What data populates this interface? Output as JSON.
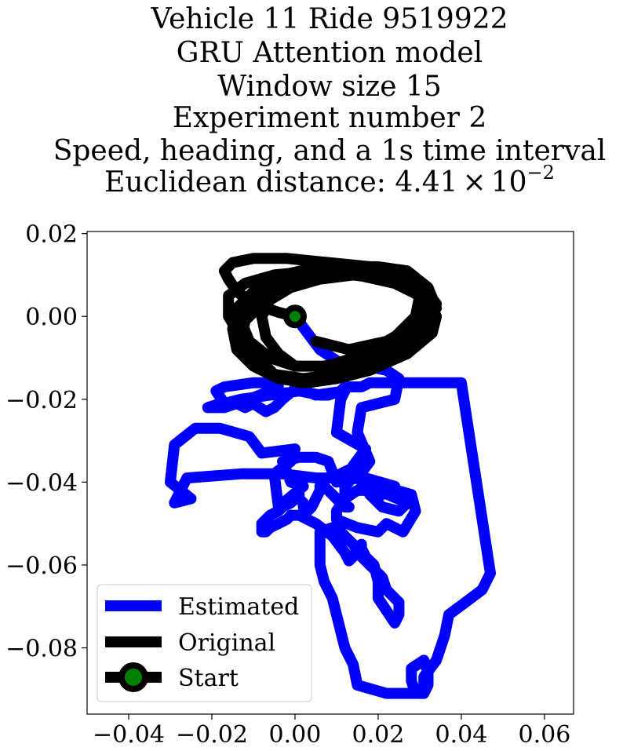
{
  "chart_data": {
    "type": "line",
    "title_lines": [
      "Vehicle 11 Ride 9519922",
      "GRU Attention model",
      "Window size 15",
      "Experiment number 2",
      "Speed, heading, and a 1s time interval"
    ],
    "title_distance": {
      "prefix": "Euclidean distance: ",
      "mantissa": "4.41",
      "times": "×",
      "base": "10",
      "exponent": "−2"
    },
    "xlabel": "",
    "ylabel": "",
    "xlim": [
      -0.05,
      0.067
    ],
    "ylim": [
      -0.096,
      0.0205
    ],
    "x_ticks": [
      -0.04,
      -0.02,
      0.0,
      0.02,
      0.04,
      0.06
    ],
    "x_tick_labels": [
      "−0.04",
      "−0.02",
      "0.00",
      "0.02",
      "0.04",
      "0.06"
    ],
    "y_ticks": [
      0.02,
      0.0,
      -0.02,
      -0.04,
      -0.06,
      -0.08
    ],
    "y_tick_labels": [
      "0.02",
      "0.00",
      "−0.02",
      "−0.04",
      "−0.06",
      "−0.08"
    ],
    "grid": false,
    "legend_position": "lower-left",
    "legend": [
      "Estimated",
      "Original",
      "Start"
    ],
    "colors": {
      "estimated": "#0000ff",
      "original": "#000000",
      "start_marker": "#008000"
    },
    "series": [
      {
        "name": "Estimated",
        "x": [
          0.0,
          0.006,
          0.012,
          0.017,
          0.022,
          0.025,
          0.024,
          0.016,
          0.015,
          0.018,
          0.015,
          0.01,
          0.008,
          0.005,
          0.001,
          -0.003,
          -0.001,
          0.002,
          -0.004,
          -0.005,
          -0.001,
          0.0,
          -0.008,
          -0.011,
          -0.018,
          -0.024,
          -0.029,
          -0.03,
          -0.025,
          -0.029,
          -0.026,
          -0.013,
          -0.003,
          0.005,
          0.009,
          0.013,
          0.017,
          0.024,
          0.021,
          0.018,
          0.021,
          0.025,
          0.027,
          0.02,
          0.015,
          0.012,
          0.01,
          0.01,
          0.015,
          0.02,
          0.022,
          0.026,
          0.029,
          0.028,
          0.021,
          0.016,
          0.014,
          0.017,
          0.01,
          0.011,
          0.012,
          0.005,
          0.0,
          0.003,
          -0.003,
          -0.005,
          -0.007,
          -0.01,
          -0.012,
          -0.014,
          -0.018,
          -0.021,
          -0.017,
          -0.011,
          -0.006,
          -0.004,
          -0.005,
          -0.01,
          -0.017,
          -0.019,
          -0.017,
          -0.013,
          -0.006,
          0.001,
          0.006,
          0.008,
          0.011,
          0.012,
          0.016,
          0.018,
          0.02,
          0.022,
          0.03,
          0.04,
          0.047,
          0.045,
          0.041,
          0.037,
          0.036,
          0.034,
          0.031,
          0.031,
          0.029,
          0.028,
          0.028,
          0.031,
          0.032,
          0.032,
          0.031,
          0.028,
          0.022,
          0.015,
          0.014,
          0.012,
          0.011,
          0.01,
          0.009,
          0.007,
          0.006,
          0.006,
          0.006,
          0.009,
          0.011,
          0.014,
          0.016,
          0.018,
          0.019,
          0.021,
          0.022,
          0.025,
          0.025,
          0.024,
          0.022,
          0.02,
          0.02,
          0.019,
          0.017,
          0.016,
          0.016,
          0.015,
          0.014,
          0.013,
          0.013,
          0.012,
          0.009,
          0.005,
          0.001,
          -0.001,
          -0.002,
          -0.004,
          -0.006,
          -0.007,
          -0.008,
          -0.008,
          -0.006,
          -0.004,
          -0.003,
          -0.001,
          0.0,
          0.001,
          0.001,
          0.002,
          0.002,
          0.003,
          0.004,
          0.005,
          0.006,
          0.006,
          0.007,
          0.008,
          0.009,
          0.01,
          0.011,
          0.013,
          0.012,
          0.011,
          0.012,
          0.012,
          0.013,
          0.013
        ],
        "y": [
          0.0,
          -0.008,
          -0.012,
          -0.012,
          -0.013,
          -0.015,
          -0.02,
          -0.022,
          -0.028,
          -0.035,
          -0.039,
          -0.04,
          -0.035,
          -0.034,
          -0.034,
          -0.035,
          -0.04,
          -0.041,
          -0.046,
          -0.038,
          -0.035,
          -0.032,
          -0.033,
          -0.029,
          -0.027,
          -0.027,
          -0.031,
          -0.04,
          -0.044,
          -0.045,
          -0.039,
          -0.038,
          -0.038,
          -0.039,
          -0.039,
          -0.037,
          -0.039,
          -0.041,
          -0.043,
          -0.043,
          -0.046,
          -0.047,
          -0.045,
          -0.042,
          -0.042,
          -0.044,
          -0.047,
          -0.049,
          -0.051,
          -0.052,
          -0.05,
          -0.052,
          -0.047,
          -0.043,
          -0.041,
          -0.04,
          -0.036,
          -0.032,
          -0.028,
          -0.02,
          -0.018,
          -0.019,
          -0.017,
          -0.015,
          -0.02,
          -0.022,
          -0.023,
          -0.021,
          -0.022,
          -0.021,
          -0.021,
          -0.022,
          -0.022,
          -0.02,
          -0.018,
          -0.017,
          -0.016,
          -0.016,
          -0.017,
          -0.018,
          -0.021,
          -0.02,
          -0.019,
          -0.018,
          -0.019,
          -0.019,
          -0.018,
          -0.017,
          -0.017,
          -0.016,
          -0.016,
          -0.016,
          -0.016,
          -0.016,
          -0.062,
          -0.066,
          -0.069,
          -0.072,
          -0.077,
          -0.083,
          -0.087,
          -0.091,
          -0.091,
          -0.088,
          -0.085,
          -0.083,
          -0.086,
          -0.089,
          -0.091,
          -0.091,
          -0.091,
          -0.089,
          -0.084,
          -0.08,
          -0.076,
          -0.072,
          -0.068,
          -0.064,
          -0.06,
          -0.056,
          -0.052,
          -0.051,
          -0.052,
          -0.055,
          -0.058,
          -0.06,
          -0.061,
          -0.063,
          -0.066,
          -0.069,
          -0.072,
          -0.074,
          -0.071,
          -0.068,
          -0.064,
          -0.06,
          -0.058,
          -0.056,
          -0.055,
          -0.056,
          -0.058,
          -0.059,
          -0.059,
          -0.057,
          -0.053,
          -0.05,
          -0.048,
          -0.048,
          -0.049,
          -0.05,
          -0.051,
          -0.052,
          -0.052,
          -0.05,
          -0.048,
          -0.047,
          -0.046,
          -0.045,
          -0.044,
          -0.043,
          -0.044,
          -0.045,
          -0.046,
          -0.047,
          -0.046,
          -0.044,
          -0.042,
          -0.041,
          -0.041,
          -0.042,
          -0.043,
          -0.044,
          -0.045,
          -0.046,
          -0.046,
          -0.045,
          -0.043,
          -0.041,
          -0.04,
          -0.039
        ]
      },
      {
        "name": "Original",
        "x": [
          0.0,
          -0.004,
          -0.01,
          -0.014,
          -0.016,
          -0.017,
          -0.015,
          -0.01,
          -0.002,
          0.008,
          0.018,
          0.026,
          0.031,
          0.034,
          0.033,
          0.027,
          0.018,
          0.01,
          0.003,
          -0.004,
          -0.01,
          -0.014,
          -0.015,
          -0.014,
          -0.01,
          -0.003,
          0.006,
          0.016,
          0.025,
          0.031,
          0.034,
          0.032,
          0.026,
          0.018,
          0.01,
          0.002,
          -0.005,
          -0.011,
          -0.013,
          -0.012,
          -0.007,
          0.0,
          0.009,
          0.018,
          0.026,
          0.03,
          0.029,
          0.024,
          0.017,
          0.008,
          0.0,
          -0.006,
          -0.011,
          -0.013,
          -0.011,
          -0.006,
          0.002,
          0.011,
          0.02,
          0.027,
          0.032,
          0.034,
          0.031,
          0.025,
          0.017,
          0.008,
          0.001,
          -0.005,
          -0.009,
          -0.013,
          -0.016,
          -0.016,
          -0.012,
          -0.005,
          0.005,
          0.015,
          0.024,
          0.03,
          0.033,
          0.031,
          0.025,
          0.016,
          0.007,
          0.0,
          -0.004,
          -0.007,
          -0.008,
          -0.006,
          -0.001,
          0.006,
          0.014,
          0.022,
          0.028,
          0.031,
          0.029,
          0.022,
          0.013,
          0.005
        ],
        "y": [
          0.0,
          0.001,
          0.003,
          0.006,
          0.009,
          0.011,
          0.013,
          0.014,
          0.014,
          0.013,
          0.012,
          0.009,
          0.005,
          0.0,
          -0.004,
          -0.009,
          -0.013,
          -0.015,
          -0.016,
          -0.015,
          -0.012,
          -0.008,
          -0.003,
          0.002,
          0.006,
          0.01,
          0.012,
          0.012,
          0.01,
          0.007,
          0.003,
          -0.002,
          -0.007,
          -0.011,
          -0.014,
          -0.015,
          -0.014,
          -0.011,
          -0.006,
          -0.001,
          0.004,
          0.008,
          0.011,
          0.011,
          0.009,
          0.005,
          0.0,
          -0.005,
          -0.009,
          -0.012,
          -0.012,
          -0.01,
          -0.006,
          -0.001,
          0.003,
          0.007,
          0.01,
          0.012,
          0.012,
          0.011,
          0.007,
          0.002,
          -0.003,
          -0.008,
          -0.012,
          -0.015,
          -0.016,
          -0.014,
          -0.01,
          -0.005,
          0.0,
          0.005,
          0.008,
          0.01,
          0.011,
          0.01,
          0.008,
          0.005,
          0.001,
          -0.003,
          -0.007,
          -0.01,
          -0.012,
          -0.012,
          -0.009,
          -0.005,
          0.0,
          0.004,
          0.007,
          0.009,
          0.01,
          0.009,
          0.007,
          0.003,
          -0.002,
          -0.006,
          -0.008,
          -0.006
        ]
      }
    ],
    "start_point": {
      "x": 0.0,
      "y": 0.0
    }
  }
}
